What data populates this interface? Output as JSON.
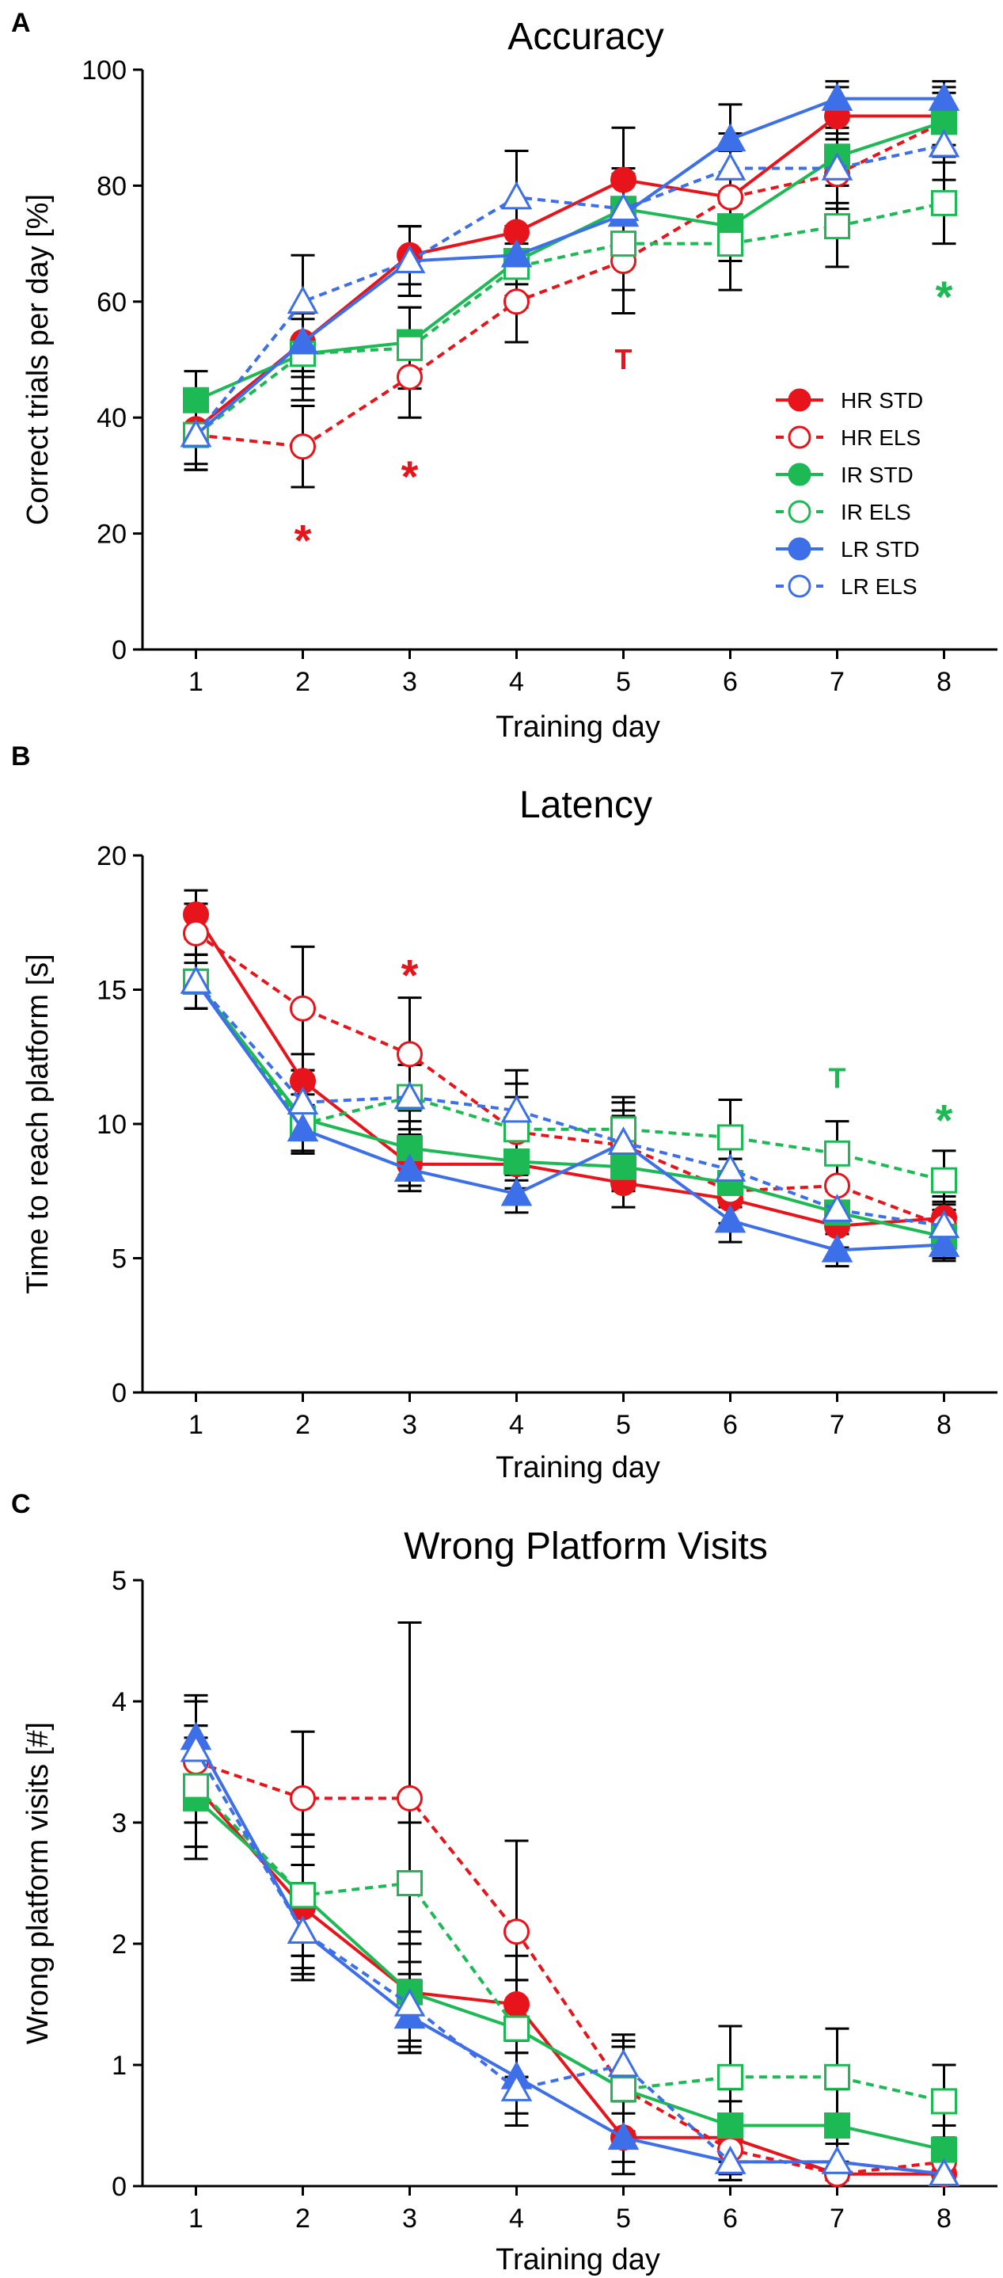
{
  "chart_data": [
    {
      "panel": "A",
      "type": "line",
      "title": "Accuracy",
      "xlabel": "Training day",
      "ylabel": "Correct trials per day [%]",
      "x": [
        1,
        2,
        3,
        4,
        5,
        6,
        7,
        8
      ],
      "xlim": [
        0.5,
        8.5
      ],
      "ylim": [
        0,
        100
      ],
      "yticks": [
        0,
        20,
        40,
        60,
        80,
        100
      ],
      "legend": "right",
      "series": [
        {
          "name": "HR STD",
          "color": "#e8141b",
          "marker": "circle",
          "filled": true,
          "dashed": false,
          "values": [
            38,
            53,
            68,
            72,
            81,
            78,
            92,
            92
          ],
          "errors": [
            6,
            5,
            5,
            5,
            9,
            8,
            6,
            5
          ]
        },
        {
          "name": "HR ELS",
          "color": "#e8141b",
          "marker": "circle",
          "filled": false,
          "dashed": true,
          "values": [
            37,
            35,
            47,
            60,
            67,
            78,
            82,
            91
          ],
          "errors": [
            6,
            7,
            7,
            7,
            9,
            8,
            6,
            6
          ]
        },
        {
          "name": "IR STD",
          "color": "#1db954",
          "marker": "square",
          "filled": true,
          "dashed": false,
          "values": [
            43,
            51,
            53,
            67,
            76,
            73,
            85,
            91
          ],
          "errors": [
            5,
            6,
            6,
            6,
            6,
            6,
            5,
            5
          ]
        },
        {
          "name": "IR ELS",
          "color": "#1db954",
          "marker": "square",
          "filled": false,
          "dashed": true,
          "values": [
            37,
            51,
            52,
            66,
            70,
            70,
            73,
            77
          ],
          "errors": [
            6,
            8,
            7,
            7,
            8,
            8,
            7,
            7
          ]
        },
        {
          "name": "LR STD",
          "color": "#3d6fe8",
          "marker": "triangle",
          "filled": true,
          "dashed": false,
          "values": [
            37,
            53,
            67,
            68,
            75,
            88,
            95,
            95
          ],
          "errors": [
            6,
            6,
            6,
            5,
            6,
            6,
            2,
            3
          ]
        },
        {
          "name": "LR ELS",
          "color": "#3d6fe8",
          "marker": "triangle",
          "filled": false,
          "dashed": true,
          "values": [
            37,
            60,
            67,
            78,
            76,
            83,
            83,
            87
          ],
          "errors": [
            6,
            8,
            6,
            8,
            7,
            6,
            6,
            6
          ]
        }
      ],
      "annotations": [
        {
          "text": "*",
          "x": 2,
          "y": 20,
          "color": "#e8141b"
        },
        {
          "text": "*",
          "x": 3,
          "y": 31,
          "color": "#e8141b"
        },
        {
          "text": "T",
          "x": 5,
          "y": 50,
          "color": "#e8141b"
        },
        {
          "text": "*",
          "x": 8,
          "y": 62,
          "color": "#1db954"
        }
      ]
    },
    {
      "panel": "B",
      "type": "line",
      "title": "Latency",
      "xlabel": "Training day",
      "ylabel": "Time to reach platform [s]",
      "x": [
        1,
        2,
        3,
        4,
        5,
        6,
        7,
        8
      ],
      "xlim": [
        0.5,
        8.5
      ],
      "ylim": [
        0,
        20
      ],
      "yticks": [
        0,
        5,
        10,
        15,
        20
      ],
      "series": [
        {
          "name": "HR STD",
          "color": "#e8141b",
          "marker": "circle",
          "filled": true,
          "dashed": false,
          "values": [
            17.8,
            11.6,
            8.5,
            8.5,
            7.8,
            7.2,
            6.2,
            6.5
          ],
          "errors": [
            0.9,
            1.0,
            0.8,
            0.9,
            0.9,
            0.9,
            0.8,
            0.8
          ]
        },
        {
          "name": "HR ELS",
          "color": "#e8141b",
          "marker": "circle",
          "filled": false,
          "dashed": true,
          "values": [
            17.1,
            14.3,
            12.6,
            9.7,
            9.2,
            7.5,
            7.7,
            6.2
          ],
          "errors": [
            1.1,
            2.3,
            2.1,
            1.8,
            1.6,
            1.2,
            1.1,
            0.9
          ]
        },
        {
          "name": "IR STD",
          "color": "#1db954",
          "marker": "square",
          "filled": true,
          "dashed": false,
          "values": [
            15.3,
            10.2,
            9.1,
            8.6,
            8.4,
            7.8,
            6.7,
            5.8
          ],
          "errors": [
            1.0,
            1.2,
            1.0,
            1.0,
            0.9,
            0.9,
            0.8,
            0.8
          ]
        },
        {
          "name": "IR ELS",
          "color": "#1db954",
          "marker": "square",
          "filled": false,
          "dashed": true,
          "values": [
            15.3,
            10.0,
            11.0,
            9.8,
            9.8,
            9.5,
            8.9,
            7.9
          ],
          "errors": [
            1.0,
            1.1,
            1.2,
            1.2,
            1.2,
            1.4,
            1.2,
            1.1
          ]
        },
        {
          "name": "LR STD",
          "color": "#3d6fe8",
          "marker": "triangle",
          "filled": true,
          "dashed": false,
          "values": [
            15.3,
            9.8,
            8.3,
            7.4,
            9.3,
            6.4,
            5.3,
            5.5
          ],
          "errors": [
            1.0,
            0.9,
            0.8,
            0.7,
            1.0,
            0.8,
            0.6,
            0.6
          ]
        },
        {
          "name": "LR ELS",
          "color": "#3d6fe8",
          "marker": "triangle",
          "filled": false,
          "dashed": true,
          "values": [
            15.3,
            10.8,
            11.0,
            10.5,
            9.3,
            8.3,
            6.8,
            6.2
          ],
          "errors": [
            1.0,
            1.2,
            1.4,
            1.5,
            1.2,
            1.0,
            0.9,
            0.8
          ]
        }
      ],
      "annotations": [
        {
          "text": "*",
          "x": 3,
          "y": 15.8,
          "color": "#e8141b"
        },
        {
          "text": "T",
          "x": 7,
          "y": 11.7,
          "color": "#1db954"
        },
        {
          "text": "*",
          "x": 8,
          "y": 10.4,
          "color": "#1db954"
        }
      ]
    },
    {
      "panel": "C",
      "type": "line",
      "title": "Wrong Platform Visits",
      "xlabel": "Training day",
      "ylabel": "Wrong platform visits [#]",
      "x": [
        1,
        2,
        3,
        4,
        5,
        6,
        7,
        8
      ],
      "xlim": [
        0.5,
        8.5
      ],
      "ylim": [
        0,
        5
      ],
      "yticks": [
        0,
        1,
        2,
        3,
        4,
        5
      ],
      "series": [
        {
          "name": "HR STD",
          "color": "#e8141b",
          "marker": "circle",
          "filled": true,
          "dashed": false,
          "values": [
            3.3,
            2.3,
            1.6,
            1.5,
            0.4,
            0.4,
            0.1,
            0.1
          ],
          "errors": [
            0.5,
            0.5,
            0.4,
            0.4,
            0.3,
            0.3,
            0.1,
            0.1
          ]
        },
        {
          "name": "HR ELS",
          "color": "#e8141b",
          "marker": "circle",
          "filled": false,
          "dashed": true,
          "values": [
            3.5,
            3.2,
            3.2,
            2.1,
            0.8,
            0.3,
            0.1,
            0.2
          ],
          "errors": [
            0.5,
            0.55,
            1.45,
            0.75,
            0.4,
            0.2,
            0.1,
            0.1
          ]
        },
        {
          "name": "IR STD",
          "color": "#1db954",
          "marker": "square",
          "filled": true,
          "dashed": false,
          "values": [
            3.2,
            2.4,
            1.6,
            1.3,
            0.8,
            0.5,
            0.5,
            0.3
          ],
          "errors": [
            0.5,
            0.5,
            0.5,
            0.4,
            0.35,
            0.3,
            0.3,
            0.2
          ]
        },
        {
          "name": "IR ELS",
          "color": "#1db954",
          "marker": "square",
          "filled": false,
          "dashed": true,
          "values": [
            3.3,
            2.4,
            2.5,
            1.3,
            0.8,
            0.9,
            0.9,
            0.7
          ],
          "errors": [
            0.5,
            0.5,
            0.5,
            0.4,
            0.35,
            0.42,
            0.4,
            0.3
          ]
        },
        {
          "name": "LR STD",
          "color": "#3d6fe8",
          "marker": "triangle",
          "filled": true,
          "dashed": false,
          "values": [
            3.7,
            2.1,
            1.4,
            0.9,
            0.4,
            0.2,
            0.2,
            0.1
          ],
          "errors": [
            0.35,
            0.35,
            0.3,
            0.3,
            0.2,
            0.15,
            0.15,
            0.1
          ]
        },
        {
          "name": "LR ELS",
          "color": "#3d6fe8",
          "marker": "triangle",
          "filled": false,
          "dashed": true,
          "values": [
            3.6,
            2.1,
            1.5,
            0.8,
            1.0,
            0.2,
            0.2,
            0.1
          ],
          "errors": [
            0.4,
            0.4,
            0.35,
            0.3,
            0.25,
            0.15,
            0.15,
            0.1
          ]
        }
      ],
      "annotations": []
    }
  ]
}
